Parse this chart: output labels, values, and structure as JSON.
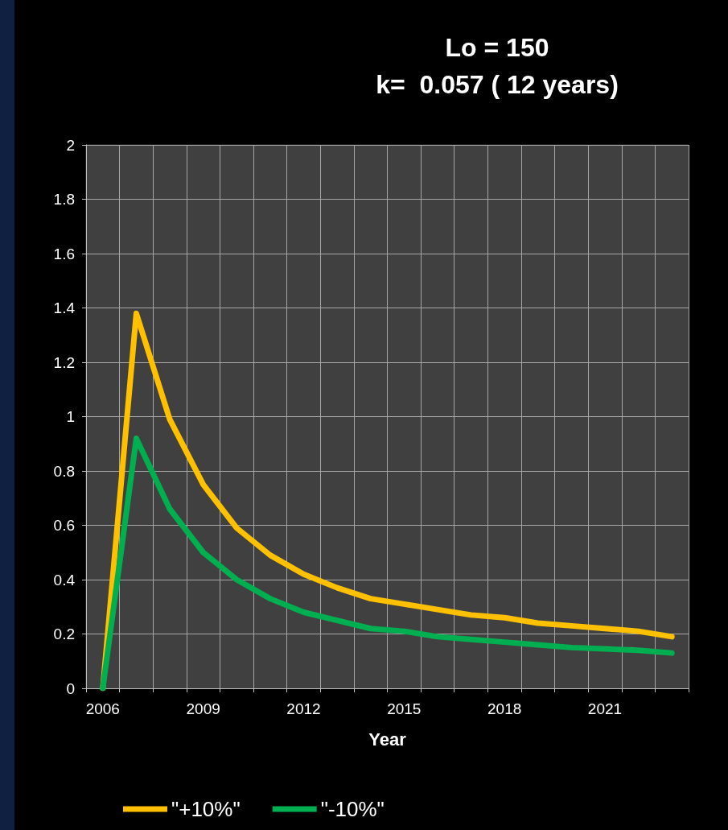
{
  "chart_data": {
    "type": "line",
    "title": "Lo = 150",
    "subtitle": "k=  0.057 ( 12 years)",
    "xlabel": "Year",
    "categories": [
      "2006",
      null,
      null,
      "2009",
      null,
      null,
      "2012",
      null,
      null,
      "2015",
      null,
      null,
      "2018",
      null,
      null,
      "2021",
      null,
      null
    ],
    "series": [
      {
        "name": "\"+10%\"",
        "color": "#ffc000",
        "values": [
          0,
          1.38,
          0.99,
          0.75,
          0.59,
          0.49,
          0.42,
          0.37,
          0.33,
          0.31,
          0.29,
          0.27,
          0.26,
          0.24,
          0.23,
          0.22,
          0.21,
          0.19
        ]
      },
      {
        "name": "\"-10%\"",
        "color": "#00b050",
        "values": [
          0,
          0.92,
          0.66,
          0.5,
          0.4,
          0.33,
          0.28,
          0.25,
          0.22,
          0.21,
          0.19,
          0.18,
          0.17,
          0.16,
          0.15,
          0.145,
          0.14,
          0.13
        ]
      }
    ],
    "ylim": [
      0,
      2
    ],
    "yticks": [
      0,
      0.2,
      0.4,
      0.6,
      0.8,
      1,
      1.2,
      1.4,
      1.6,
      1.8,
      2
    ],
    "grid": true,
    "legend": "bottom",
    "marker": "none",
    "line_style": "solid"
  }
}
